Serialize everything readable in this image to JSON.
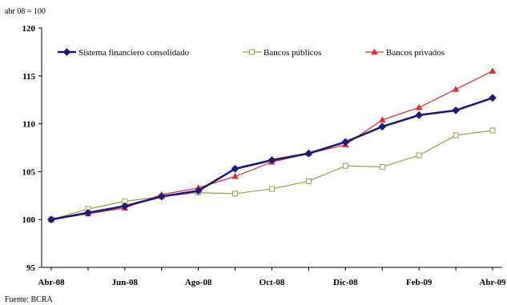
{
  "chart_data": {
    "type": "line",
    "unit_label": "abr 08 = 100",
    "source": "Fuente: BCRA",
    "x": [
      "Abr-08",
      "May-08",
      "Jun-08",
      "Jul-08",
      "Ago-08",
      "Sep-08",
      "Oct-08",
      "Nov-08",
      "Dic-08",
      "Ene-09",
      "Feb-09",
      "Mar-09",
      "Abr-09"
    ],
    "x_tick_labels": [
      "Abr-08",
      "Jun-08",
      "Ago-08",
      "Oct-08",
      "Dic-08",
      "Feb-09",
      "Abr-09"
    ],
    "ylim": [
      95,
      120
    ],
    "y_ticks": [
      95,
      100,
      105,
      110,
      115,
      120
    ],
    "grid": false,
    "legend_position": "top",
    "series": [
      {
        "name": "Sistema financiero consolidado",
        "color": "#1a1a80",
        "marker": "diamond",
        "values": [
          100.0,
          100.7,
          101.4,
          102.4,
          103.0,
          105.3,
          106.2,
          106.9,
          108.1,
          109.7,
          110.9,
          111.4,
          112.7
        ]
      },
      {
        "name": "Bancos públicos",
        "color": "#9e9a3c",
        "marker": "square-open",
        "values": [
          100.0,
          101.1,
          101.9,
          102.4,
          102.8,
          102.7,
          103.2,
          104.0,
          105.6,
          105.5,
          106.7,
          108.8,
          109.3
        ]
      },
      {
        "name": "Bancos privados",
        "color": "#e8272d",
        "marker": "triangle",
        "values": [
          100.0,
          100.6,
          101.2,
          102.6,
          103.3,
          104.5,
          106.0,
          106.9,
          107.8,
          110.4,
          111.7,
          113.6,
          115.5
        ]
      }
    ]
  }
}
